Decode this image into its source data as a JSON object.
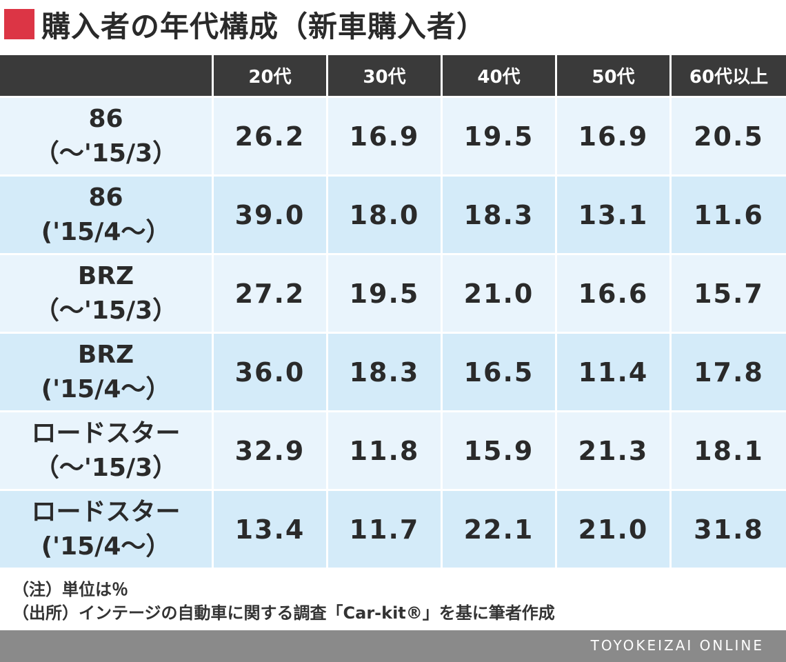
{
  "title": "購入者の年代構成（新車購入者）",
  "colors": {
    "title_mark": "#dc3545",
    "header_bg": "#3a3a3a",
    "row_light": "#e9f4fc",
    "row_dark": "#d4ebf9",
    "footer_bg": "#8a8a8a"
  },
  "chart_data": {
    "type": "table",
    "columns": [
      "",
      "20代",
      "30代",
      "40代",
      "50代",
      "60代以上"
    ],
    "rows": [
      {
        "label_line1": "86",
        "label_line2": "（～'15/3）",
        "values": [
          "26.2",
          "16.9",
          "19.5",
          "16.9",
          "20.5"
        ]
      },
      {
        "label_line1": "86",
        "label_line2": "('15/4～）",
        "values": [
          "39.0",
          "18.0",
          "18.3",
          "13.1",
          "11.6"
        ]
      },
      {
        "label_line1": "BRZ",
        "label_line2": "（～'15/3）",
        "values": [
          "27.2",
          "19.5",
          "21.0",
          "16.6",
          "15.7"
        ]
      },
      {
        "label_line1": "BRZ",
        "label_line2": "('15/4～）",
        "values": [
          "36.0",
          "18.3",
          "16.5",
          "11.4",
          "17.8"
        ]
      },
      {
        "label_line1": "ロードスター",
        "label_line2": "（～'15/3）",
        "values": [
          "32.9",
          "11.8",
          "15.9",
          "21.3",
          "18.1"
        ]
      },
      {
        "label_line1": "ロードスター",
        "label_line2": "('15/4～）",
        "values": [
          "13.4",
          "11.7",
          "22.1",
          "21.0",
          "31.8"
        ]
      }
    ]
  },
  "notes": {
    "unit": "（注）単位は％",
    "source": "（出所）インテージの自動車に関する調査「Car-kit®」を基に筆者作成"
  },
  "footer": {
    "brand": "TOYOKEIZAI ONLINE"
  }
}
